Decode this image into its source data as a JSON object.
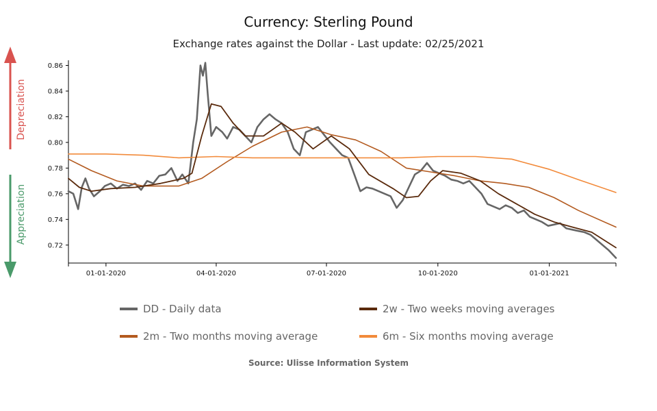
{
  "title": "Currency: Sterling Pound",
  "subtitle": "Exchange rates against the Dollar - Last update: 02/25/2021",
  "source": "Source: Ulisse Information System",
  "side_labels": {
    "depreciation": "Depreciation",
    "appreciation": "Appreciation",
    "depreciation_color": "#d9534f",
    "appreciation_color": "#4a9a6a"
  },
  "legend": [
    {
      "label": "DD - Daily data",
      "color": "#666666"
    },
    {
      "label": "2w - Two weeks moving averages",
      "color": "#5a2a0c"
    },
    {
      "label": "2m - Two months moving average",
      "color": "#b35a1f"
    },
    {
      "label": "6m - Six months moving average",
      "color": "#f28a3a"
    }
  ],
  "chart_data": {
    "type": "line",
    "title": "Currency: Sterling Pound",
    "subtitle": "Exchange rates against the Dollar - Last update: 02/25/2021",
    "xlim": [
      "2019-12-01",
      "2021-02-25"
    ],
    "ylim": [
      0.706,
      0.864
    ],
    "yticks": [
      0.72,
      0.74,
      0.76,
      0.78,
      0.8,
      0.82,
      0.84,
      0.86
    ],
    "ytick_labels": [
      "0.72",
      "0.74",
      "0.76",
      "0.78",
      "0.80",
      "0.82",
      "0.84",
      "0.86"
    ],
    "xticks": [
      "2020-01-01",
      "2020-04-01",
      "2020-07-01",
      "2020-10-01",
      "2021-01-01"
    ],
    "xtick_labels": [
      "01-01-2020",
      "04-01-2020",
      "07-01-2020",
      "10-01-2020",
      "01-01-2021"
    ],
    "grid": false,
    "legend_position": "bottom",
    "series": [
      {
        "name": "DD - Daily data",
        "color": "#666666",
        "width": 2.6,
        "x": [
          "2019-12-01",
          "2019-12-05",
          "2019-12-09",
          "2019-12-12",
          "2019-12-15",
          "2019-12-18",
          "2019-12-22",
          "2019-12-27",
          "2019-12-31",
          "2020-01-05",
          "2020-01-10",
          "2020-01-15",
          "2020-01-20",
          "2020-01-25",
          "2020-01-30",
          "2020-02-04",
          "2020-02-09",
          "2020-02-14",
          "2020-02-19",
          "2020-02-24",
          "2020-02-29",
          "2020-03-04",
          "2020-03-09",
          "2020-03-13",
          "2020-03-16",
          "2020-03-19",
          "2020-03-21",
          "2020-03-23",
          "2020-03-25",
          "2020-03-28",
          "2020-04-01",
          "2020-04-06",
          "2020-04-10",
          "2020-04-15",
          "2020-04-20",
          "2020-04-25",
          "2020-04-30",
          "2020-05-05",
          "2020-05-10",
          "2020-05-15",
          "2020-05-20",
          "2020-05-25",
          "2020-05-30",
          "2020-06-04",
          "2020-06-09",
          "2020-06-14",
          "2020-06-19",
          "2020-06-24",
          "2020-06-29",
          "2020-07-04",
          "2020-07-09",
          "2020-07-14",
          "2020-07-19",
          "2020-07-24",
          "2020-07-29",
          "2020-08-03",
          "2020-08-08",
          "2020-08-13",
          "2020-08-18",
          "2020-08-23",
          "2020-08-28",
          "2020-09-02",
          "2020-09-07",
          "2020-09-12",
          "2020-09-17",
          "2020-09-22",
          "2020-09-27",
          "2020-10-02",
          "2020-10-07",
          "2020-10-12",
          "2020-10-17",
          "2020-10-22",
          "2020-10-27",
          "2020-11-01",
          "2020-11-06",
          "2020-11-11",
          "2020-11-16",
          "2020-11-21",
          "2020-11-26",
          "2020-12-01",
          "2020-12-06",
          "2020-12-11",
          "2020-12-16",
          "2020-12-21",
          "2020-12-26",
          "2020-12-31",
          "2021-01-05",
          "2021-01-10",
          "2021-01-15",
          "2021-01-20",
          "2021-01-25",
          "2021-01-30",
          "2021-02-04",
          "2021-02-09",
          "2021-02-14",
          "2021-02-19",
          "2021-02-25"
        ],
        "y": [
          0.762,
          0.76,
          0.748,
          0.765,
          0.772,
          0.764,
          0.758,
          0.762,
          0.766,
          0.768,
          0.764,
          0.767,
          0.766,
          0.768,
          0.763,
          0.77,
          0.768,
          0.774,
          0.775,
          0.78,
          0.77,
          0.775,
          0.768,
          0.8,
          0.818,
          0.86,
          0.852,
          0.862,
          0.838,
          0.805,
          0.812,
          0.808,
          0.803,
          0.812,
          0.81,
          0.805,
          0.8,
          0.812,
          0.818,
          0.822,
          0.818,
          0.815,
          0.808,
          0.795,
          0.79,
          0.808,
          0.81,
          0.812,
          0.806,
          0.8,
          0.795,
          0.79,
          0.788,
          0.775,
          0.762,
          0.765,
          0.764,
          0.762,
          0.76,
          0.758,
          0.749,
          0.755,
          0.765,
          0.775,
          0.778,
          0.784,
          0.778,
          0.776,
          0.774,
          0.771,
          0.77,
          0.768,
          0.77,
          0.765,
          0.76,
          0.752,
          0.75,
          0.748,
          0.751,
          0.749,
          0.745,
          0.747,
          0.742,
          0.74,
          0.738,
          0.735,
          0.736,
          0.737,
          0.733,
          0.732,
          0.731,
          0.73,
          0.728,
          0.724,
          0.72,
          0.716,
          0.71
        ]
      },
      {
        "name": "2m - Two months moving average",
        "color": "#b35a1f",
        "width": 1.6,
        "x": [
          "2019-12-01",
          "2019-12-20",
          "2020-01-10",
          "2020-02-01",
          "2020-03-01",
          "2020-03-20",
          "2020-04-10",
          "2020-05-01",
          "2020-05-25",
          "2020-06-15",
          "2020-07-05",
          "2020-07-25",
          "2020-08-15",
          "2020-09-05",
          "2020-09-25",
          "2020-10-15",
          "2020-11-05",
          "2020-11-25",
          "2020-12-15",
          "2021-01-05",
          "2021-01-25",
          "2021-02-25"
        ],
        "y": [
          0.787,
          0.778,
          0.77,
          0.766,
          0.766,
          0.772,
          0.785,
          0.797,
          0.808,
          0.812,
          0.806,
          0.802,
          0.793,
          0.78,
          0.777,
          0.774,
          0.77,
          0.768,
          0.765,
          0.757,
          0.747,
          0.734
        ]
      },
      {
        "name": "6m - Six months moving average",
        "color": "#f28a3a",
        "width": 1.6,
        "x": [
          "2019-12-01",
          "2020-01-01",
          "2020-02-01",
          "2020-03-01",
          "2020-04-01",
          "2020-05-01",
          "2020-06-01",
          "2020-07-01",
          "2020-08-01",
          "2020-09-01",
          "2020-10-01",
          "2020-11-01",
          "2020-12-01",
          "2021-01-01",
          "2021-01-25",
          "2021-02-25"
        ],
        "y": [
          0.791,
          0.791,
          0.79,
          0.788,
          0.789,
          0.788,
          0.788,
          0.788,
          0.788,
          0.788,
          0.789,
          0.789,
          0.787,
          0.779,
          0.771,
          0.761
        ]
      },
      {
        "name": "2w - Two weeks moving averages",
        "color": "#5a2a0c",
        "width": 1.8,
        "x": [
          "2019-12-01",
          "2019-12-10",
          "2019-12-20",
          "2020-01-05",
          "2020-01-25",
          "2020-02-15",
          "2020-03-05",
          "2020-03-12",
          "2020-03-20",
          "2020-03-28",
          "2020-04-05",
          "2020-04-15",
          "2020-04-25",
          "2020-05-10",
          "2020-05-25",
          "2020-06-05",
          "2020-06-20",
          "2020-07-05",
          "2020-07-20",
          "2020-08-05",
          "2020-08-25",
          "2020-09-05",
          "2020-09-15",
          "2020-09-25",
          "2020-10-05",
          "2020-10-20",
          "2020-11-05",
          "2020-11-20",
          "2020-12-05",
          "2020-12-20",
          "2021-01-05",
          "2021-01-20",
          "2021-02-05",
          "2021-02-25"
        ],
        "y": [
          0.772,
          0.765,
          0.762,
          0.764,
          0.765,
          0.768,
          0.772,
          0.776,
          0.805,
          0.83,
          0.828,
          0.815,
          0.805,
          0.805,
          0.815,
          0.808,
          0.795,
          0.805,
          0.795,
          0.775,
          0.764,
          0.757,
          0.758,
          0.77,
          0.778,
          0.776,
          0.77,
          0.76,
          0.752,
          0.744,
          0.738,
          0.734,
          0.73,
          0.718
        ]
      }
    ]
  }
}
